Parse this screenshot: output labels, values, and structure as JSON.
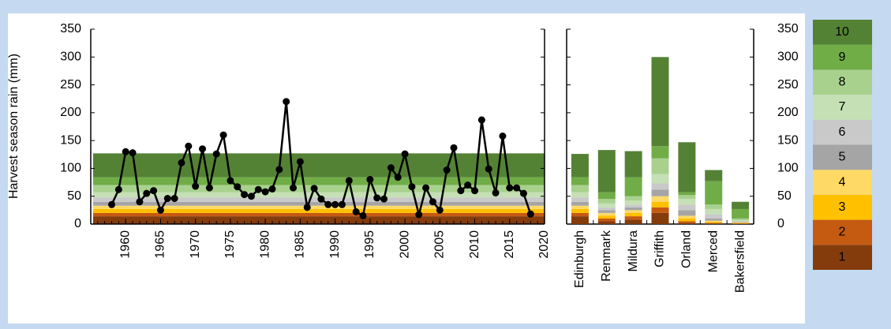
{
  "chart_data": [
    {
      "type": "line",
      "ylabel": "Harvest season rain (mm)",
      "x": [
        1958,
        1959,
        1960,
        1961,
        1962,
        1963,
        1964,
        1965,
        1966,
        1967,
        1968,
        1969,
        1970,
        1971,
        1972,
        1973,
        1974,
        1975,
        1976,
        1977,
        1978,
        1979,
        1980,
        1981,
        1982,
        1983,
        1984,
        1985,
        1986,
        1987,
        1988,
        1989,
        1990,
        1991,
        1992,
        1993,
        1994,
        1995,
        1996,
        1997,
        1998,
        1999,
        2000,
        2001,
        2002,
        2003,
        2004,
        2005,
        2006,
        2007,
        2008,
        2009,
        2010,
        2011,
        2012,
        2013,
        2014,
        2015,
        2016,
        2017,
        2018
      ],
      "values": [
        35,
        62,
        130,
        128,
        40,
        55,
        60,
        25,
        46,
        46,
        110,
        140,
        68,
        135,
        65,
        126,
        160,
        78,
        67,
        53,
        50,
        62,
        58,
        63,
        98,
        220,
        65,
        112,
        30,
        64,
        45,
        35,
        35,
        35,
        78,
        22,
        15,
        80,
        47,
        45,
        101,
        84,
        126,
        67,
        17,
        65,
        40,
        25,
        97,
        137,
        60,
        70,
        60,
        187,
        99,
        56,
        158,
        65,
        65,
        55,
        18
      ],
      "color": "#000000",
      "band_edges": [
        0,
        14,
        20,
        27,
        33,
        40,
        48,
        57,
        70,
        84,
        127
      ],
      "xlim": [
        1955,
        2020
      ],
      "xticks": [
        1960,
        1965,
        1970,
        1975,
        1980,
        1985,
        1990,
        1995,
        2000,
        2005,
        2010,
        2015,
        2020
      ],
      "ylim": [
        0,
        350
      ],
      "yticks": [
        0,
        50,
        100,
        150,
        200,
        250,
        300,
        350
      ]
    },
    {
      "type": "stacked_bar",
      "categories": [
        "Edinburgh",
        "Renmark",
        "Mildura",
        "Griffith",
        "Orland",
        "Merced",
        "Bakersfield"
      ],
      "series": [
        {
          "name": "1",
          "color": "#843c0c",
          "values": [
            14,
            5,
            8,
            20,
            2,
            1,
            0.5
          ]
        },
        {
          "name": "2",
          "color": "#c55a11",
          "values": [
            6,
            5,
            6,
            10,
            3,
            1,
            0.5
          ]
        },
        {
          "name": "3",
          "color": "#ffc000",
          "values": [
            7,
            5,
            6,
            10,
            5,
            2,
            1
          ]
        },
        {
          "name": "4",
          "color": "#ffd966",
          "values": [
            6,
            5,
            5,
            10,
            5,
            2,
            1
          ]
        },
        {
          "name": "5",
          "color": "#a5a5a5",
          "values": [
            7,
            5,
            5,
            12,
            10,
            4,
            1
          ]
        },
        {
          "name": "6",
          "color": "#c9c9c9",
          "values": [
            8,
            5,
            5,
            11,
            10,
            8,
            1
          ]
        },
        {
          "name": "7",
          "color": "#c5e0b4",
          "values": [
            9,
            7,
            7,
            17,
            10,
            9,
            2
          ]
        },
        {
          "name": "8",
          "color": "#a9d18e",
          "values": [
            13,
            8,
            8,
            28,
            7,
            8,
            3
          ]
        },
        {
          "name": "9",
          "color": "#70ad47",
          "values": [
            14,
            12,
            34,
            22,
            5,
            42,
            17
          ]
        },
        {
          "name": "10",
          "color": "#548235",
          "values": [
            42,
            76,
            47,
            160,
            90,
            20,
            13
          ]
        }
      ],
      "ylim": [
        0,
        350
      ],
      "yticks": [
        0,
        50,
        100,
        150,
        200,
        250,
        300,
        350
      ]
    }
  ]
}
